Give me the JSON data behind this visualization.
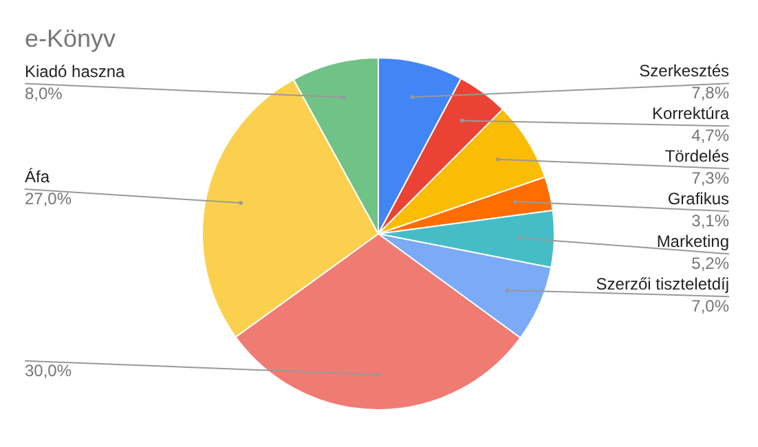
{
  "chart_data": {
    "type": "pie",
    "title": "e-Könyv",
    "categories": [
      "Szerkesztés",
      "Korrektúra",
      "Tördelés",
      "Grafikus",
      "Marketing",
      "Szerzői tiszteletdíj",
      null,
      "Áfa",
      "Kiadó haszna"
    ],
    "values": [
      7.8,
      4.7,
      7.3,
      3.1,
      5.2,
      7.0,
      30.0,
      27.0,
      8.0
    ],
    "colors": [
      "#4285f4",
      "#ea4335",
      "#fbbc04",
      "#ff6d01",
      "#46bdc6",
      "#7baaf7",
      "#f07b72",
      "#fcd04f",
      "#71c287"
    ],
    "value_labels": [
      "7,8%",
      "4,7%",
      "7,3%",
      "3,1%",
      "5,2%",
      "7,0%",
      "30,0%",
      "27,0%",
      "8,0%"
    ],
    "legend": false
  }
}
